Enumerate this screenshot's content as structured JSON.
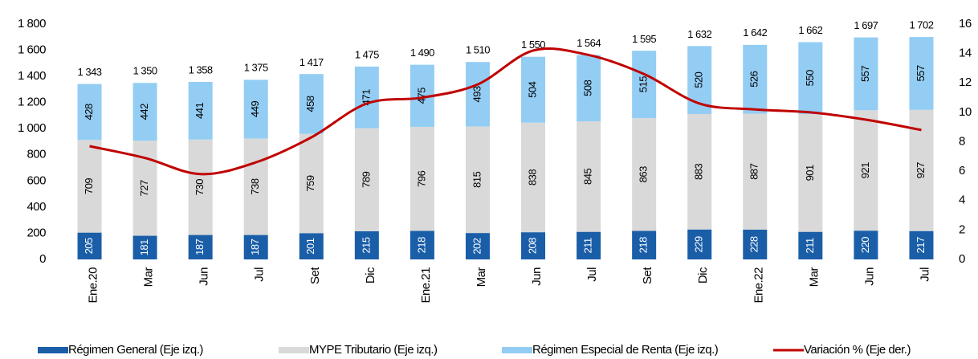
{
  "chart_data": {
    "type": "stacked-bar-line",
    "categories": [
      "Ene.20",
      "Mar",
      "Jun",
      "Jul",
      "Set",
      "Dic",
      "Ene.21",
      "Mar",
      "Jun",
      "Jul",
      "Set",
      "Dic",
      "Ene.22",
      "Mar",
      "Jun",
      "Jul"
    ],
    "series": [
      {
        "name": "Régimen General (Eje izq.)",
        "color": "#1a5ea8",
        "values": [
          205,
          181,
          187,
          187,
          201,
          215,
          218,
          202,
          208,
          211,
          218,
          229,
          228,
          211,
          220,
          217
        ]
      },
      {
        "name": "MYPE Tributario (Eje izq.)",
        "color": "#d9d9d9",
        "values": [
          709,
          727,
          730,
          738,
          759,
          789,
          796,
          815,
          838,
          845,
          863,
          883,
          887,
          901,
          921,
          927
        ]
      },
      {
        "name": "Régimen Especial de Renta (Eje izq.)",
        "color": "#93cdf4",
        "values": [
          428,
          442,
          441,
          449,
          458,
          471,
          475,
          493,
          504,
          508,
          515,
          520,
          526,
          550,
          557,
          557
        ]
      },
      {
        "name": "Variación % (Eje der.)",
        "color": "#c00000",
        "axis": "y2",
        "type": "line",
        "values": [
          7.7,
          6.9,
          5.8,
          6.6,
          8.3,
          10.6,
          11.0,
          11.9,
          14.2,
          13.9,
          12.6,
          10.6,
          10.2,
          10.0,
          9.5,
          8.8
        ]
      }
    ],
    "totals": {
      "values": [
        1343,
        1350,
        1358,
        1375,
        1417,
        1475,
        1490,
        1510,
        1550,
        1564,
        1595,
        1632,
        1642,
        1662,
        1697,
        1702
      ],
      "value_labels": [
        "1 343",
        "1 350",
        "1 358",
        "1 375",
        "1 417",
        "1 475",
        "1 490",
        "1 510",
        "1 550",
        "1 564",
        "1 595",
        "1 632",
        "1 642",
        "1 662",
        "1 697",
        "1 702"
      ]
    },
    "ylim": [
      0,
      1800
    ],
    "yticks": [
      0,
      200,
      400,
      600,
      800,
      {
        "value": 1000,
        "label": "1 000"
      },
      {
        "value": 1200,
        "label": "1 200"
      },
      {
        "value": 1400,
        "label": "1 400"
      },
      {
        "value": 1600,
        "label": "1 600"
      },
      {
        "value": 1800,
        "label": "1 800"
      }
    ],
    "y2lim": [
      0,
      16
    ],
    "y2ticks": [
      0,
      2,
      4,
      6,
      8,
      10,
      12,
      14,
      16
    ],
    "grid": false,
    "legend": "bottom"
  }
}
